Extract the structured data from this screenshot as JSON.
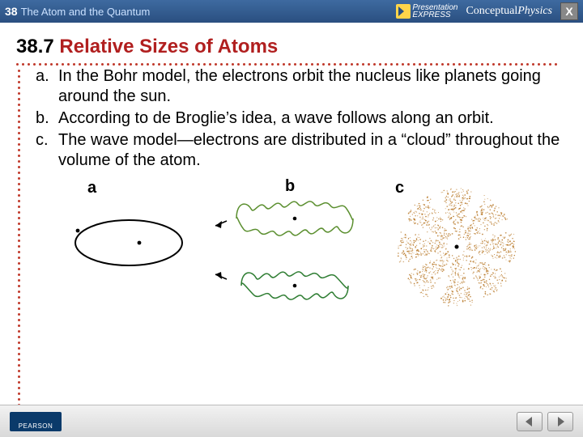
{
  "topbar": {
    "chapter_num": "38",
    "chapter_title": "The Atom and the Quantum",
    "presentation_label_1": "Presentation",
    "presentation_label_2": "EXPRESS",
    "book_prefix": "Conceptual",
    "book_suffix": "Physics",
    "close_label": "X"
  },
  "heading": {
    "section_num": "38.7",
    "section_title": "Relative Sizes of Atoms"
  },
  "items": [
    {
      "label": "a.",
      "text": "In the Bohr model, the electrons orbit the nucleus like planets going around the sun."
    },
    {
      "label": "b.",
      "text": "According to de Broglie’s idea, a wave follows along an orbit."
    },
    {
      "label": "c.",
      "text": "The wave model—electrons are distributed in a “cloud” throughout the volume of the atom."
    }
  ],
  "figure": {
    "labels": {
      "a": "a",
      "b": "b",
      "c": "c"
    },
    "colors": {
      "stroke": "#000000",
      "wave_a": "#5b8f2f",
      "wave_b": "#2e7d32",
      "cloud": "#b97a2a",
      "bg": "#ffffff"
    }
  },
  "footer": {
    "publisher": "PEARSON"
  },
  "style": {
    "dot_color": "#c0392b",
    "heading_red": "#b11f1f",
    "topbar_grad_top": "#3e6aa0",
    "topbar_grad_bot": "#2a4f80"
  }
}
